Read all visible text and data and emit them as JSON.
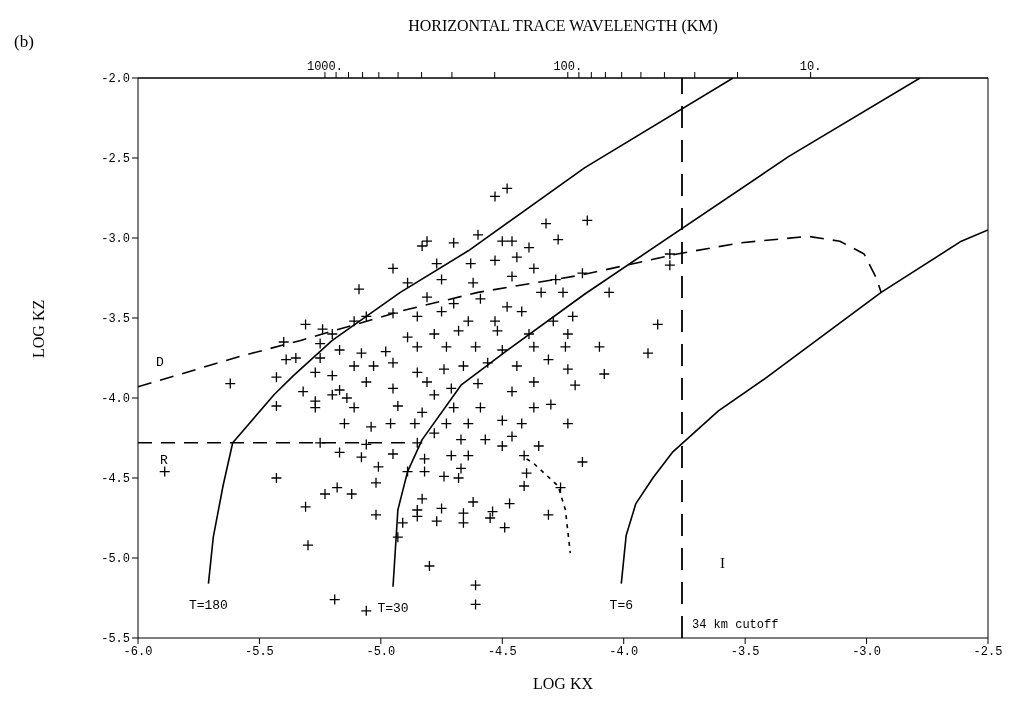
{
  "chart_data": {
    "type": "scatter",
    "title": "(b)",
    "xlabel": "LOG KX",
    "ylabel": "LOG KZ",
    "x2label": "HORIZONTAL TRACE WAVELENGTH (KM)",
    "xlim": [
      -6.0,
      -2.5
    ],
    "ylim": [
      -5.5,
      -2.0
    ],
    "xticks": [
      {
        "value": -6,
        "label": "-6.0"
      },
      -5.5,
      {
        "value": -5,
        "label": "-5.0"
      },
      -4.5,
      {
        "value": -4,
        "label": "-4.0"
      },
      -3.5,
      {
        "value": -3,
        "label": "-3.0"
      },
      -2.5
    ],
    "yticks": [
      -5.5,
      {
        "value": -5,
        "label": "-5.0"
      },
      -4.5,
      {
        "value": -4,
        "label": "-4.0"
      },
      -3.5,
      {
        "value": -3,
        "label": "-3.0"
      },
      -2.5,
      {
        "value": -2,
        "label": "-2.0"
      }
    ],
    "x2lim": [
      5888,
      1.86
    ],
    "log": "x2",
    "x2ticks": [
      {
        "value": 1000,
        "label": "1000."
      },
      {
        "value": 900,
        "label": null
      },
      {
        "value": 800,
        "label": null
      },
      {
        "value": 700,
        "label": null
      },
      {
        "value": 600,
        "label": null
      },
      {
        "value": 500,
        "label": null
      },
      {
        "value": 400,
        "label": null
      },
      {
        "value": 300,
        "label": null
      },
      {
        "value": 200,
        "label": null
      },
      {
        "value": 100,
        "label": "100."
      },
      {
        "value": 90,
        "label": null
      },
      {
        "value": 80,
        "label": null
      },
      {
        "value": 70,
        "label": null
      },
      {
        "value": 60,
        "label": null
      },
      {
        "value": 50,
        "label": null
      },
      {
        "value": 40,
        "label": null
      },
      {
        "value": 30,
        "label": null
      },
      {
        "value": 20,
        "label": null
      },
      {
        "value": 10,
        "label": "10."
      }
    ],
    "grid": false,
    "legend": false,
    "ref_lines": [
      {
        "axis": "x",
        "value": -3.76,
        "label": "34 km cutoff",
        "line_style": "dashed",
        "color": "#000000"
      }
    ],
    "annotations": [
      "I"
    ],
    "series": [
      {
        "color": "#000000",
        "marker": "cross",
        "x": [
          -4.53,
          -4.48,
          -4.32,
          -4.27,
          -4.6,
          -4.5,
          -4.46,
          -4.39,
          -4.7,
          -4.83,
          -4.81,
          -4.95,
          -5.09,
          -5.31,
          -5.24,
          -5.4,
          -5.62,
          -4.21,
          -4.77,
          -4.63,
          -4.53,
          -4.44,
          -4.89,
          -4.75,
          -4.62,
          -4.46,
          -4.37,
          -4.28,
          -4.17,
          -4.81,
          -4.7,
          -4.59,
          -4.48,
          -4.34,
          -4.25,
          -5.06,
          -4.95,
          -4.85,
          -4.75,
          -4.64,
          -4.53,
          -4.42,
          -4.29,
          -5.2,
          -5.11,
          -4.89,
          -4.78,
          -4.68,
          -4.52,
          -4.39,
          -4.23,
          -5.25,
          -5.39,
          -5.35,
          -5.25,
          -5.17,
          -5.08,
          -4.98,
          -4.85,
          -4.73,
          -4.61,
          -4.5,
          -4.37,
          -4.24,
          -5.43,
          -5.27,
          -5.2,
          -5.11,
          -5.03,
          -4.95,
          -4.85,
          -4.74,
          -4.66,
          -4.56,
          -4.44,
          -4.31,
          -4.23,
          -5.32,
          -5.17,
          -5.06,
          -4.95,
          -4.81,
          -4.71,
          -4.6,
          -4.46,
          -4.37,
          -4.2,
          -5.43,
          -5.27,
          -5.27,
          -5.2,
          -5.14,
          -5.15,
          -5.11,
          -5.04,
          -4.96,
          -4.93,
          -4.86,
          -4.83,
          -4.78,
          -4.73,
          -4.7,
          -4.64,
          -4.59,
          -4.5,
          -4.42,
          -4.37,
          -4.3,
          -4.23,
          -4.17,
          -5.25,
          -5.17,
          -5.06,
          -5.08,
          -5.01,
          -4.95,
          -4.85,
          -4.82,
          -4.78,
          -4.71,
          -4.67,
          -4.64,
          -4.67,
          -4.57,
          -4.5,
          -4.46,
          -4.41,
          -4.35,
          -4.82,
          -4.74,
          -4.68,
          -4.89,
          -5.89,
          -5.43,
          -5.23,
          -5.18,
          -5.12,
          -5.02,
          -5.31,
          -5.02,
          -5.3,
          -5.19,
          -5.06,
          -4.93,
          -4.91,
          -4.85,
          -4.85,
          -4.83,
          -4.77,
          -4.75,
          -4.66,
          -4.66,
          -4.62,
          -4.55,
          -4.54,
          -4.49,
          -4.47,
          -4.4,
          -4.41,
          -4.31,
          -4.26,
          -4.8,
          -4.61,
          -4.61,
          -4.15,
          -3.81,
          -3.81,
          -4.06,
          -3.86,
          -4.1,
          -3.9,
          -4.08
        ],
        "values": [
          -2.74,
          -2.69,
          -2.91,
          -3.01,
          -2.98,
          -3.02,
          -3.02,
          -3.06,
          -3.03,
          -3.05,
          -3.02,
          -3.19,
          -3.32,
          -3.54,
          -3.57,
          -3.65,
          -3.91,
          -3.49,
          -3.16,
          -3.16,
          -3.14,
          -3.12,
          -3.28,
          -3.26,
          -3.28,
          -3.24,
          -3.19,
          -3.26,
          -3.22,
          -3.37,
          -3.41,
          -3.38,
          -3.43,
          -3.34,
          -3.34,
          -3.49,
          -3.47,
          -3.49,
          -3.46,
          -3.52,
          -3.52,
          -3.46,
          -3.52,
          -3.6,
          -3.52,
          -3.62,
          -3.6,
          -3.58,
          -3.58,
          -3.6,
          -3.6,
          -3.66,
          -3.76,
          -3.75,
          -3.75,
          -3.7,
          -3.72,
          -3.71,
          -3.68,
          -3.68,
          -3.68,
          -3.7,
          -3.68,
          -3.68,
          -3.87,
          -3.84,
          -3.86,
          -3.8,
          -3.8,
          -3.78,
          -3.84,
          -3.82,
          -3.8,
          -3.78,
          -3.8,
          -3.76,
          -3.82,
          -3.96,
          -3.95,
          -3.9,
          -3.94,
          -3.9,
          -3.94,
          -3.91,
          -3.96,
          -3.9,
          -3.92,
          -4.05,
          -4.02,
          -4.06,
          -3.98,
          -4.0,
          -4.16,
          -4.06,
          -4.18,
          -4.16,
          -4.05,
          -4.16,
          -4.09,
          -3.98,
          -4.16,
          -4.06,
          -4.16,
          -4.06,
          -4.14,
          -4.16,
          -4.06,
          -4.04,
          -4.16,
          -4.4,
          -4.28,
          -4.34,
          -4.29,
          -4.37,
          -4.43,
          -4.35,
          -4.28,
          -4.38,
          -4.22,
          -4.36,
          -4.26,
          -4.36,
          -4.44,
          -4.26,
          -4.3,
          -4.24,
          -4.36,
          -4.3,
          -4.46,
          -4.49,
          -4.5,
          -4.46,
          -4.46,
          -4.5,
          -4.6,
          -4.56,
          -4.6,
          -4.53,
          -4.68,
          -4.73,
          -4.92,
          -5.26,
          -5.33,
          -4.87,
          -4.78,
          -4.7,
          -4.74,
          -4.63,
          -4.77,
          -4.69,
          -4.72,
          -4.78,
          -4.65,
          -4.75,
          -4.71,
          -4.81,
          -4.66,
          -4.47,
          -4.55,
          -4.73,
          -4.56,
          -5.05,
          -5.17,
          -5.29,
          -2.89,
          -3.1,
          -3.17,
          -3.34,
          -3.54,
          -3.68,
          -3.72,
          -3.85
        ]
      },
      {
        "type": "line",
        "name": "T=180",
        "color": "#000000",
        "line_style": "solid",
        "x": [
          -5.71,
          -5.69,
          -5.65,
          -5.61,
          -5.44,
          -5.36,
          -5.2,
          -4.92,
          -4.64,
          -4.16,
          -3.55
        ],
        "values": [
          -5.16,
          -4.87,
          -4.55,
          -4.28,
          -3.98,
          -3.86,
          -3.64,
          -3.34,
          -3.08,
          -2.56,
          -2.0
        ]
      },
      {
        "type": "line",
        "name": "T=30",
        "color": "#000000",
        "line_style": "solid",
        "x": [
          -4.95,
          -4.93,
          -4.89,
          -4.83,
          -4.67,
          -4.46,
          -4.16,
          -3.32,
          -2.78
        ],
        "values": [
          -5.18,
          -4.7,
          -4.46,
          -4.26,
          -3.92,
          -3.68,
          -3.35,
          -2.49,
          -2.0
        ]
      },
      {
        "type": "line",
        "name": "T=6",
        "color": "#000000",
        "line_style": "solid",
        "x": [
          -4.01,
          -3.99,
          -3.95,
          -3.88,
          -3.8,
          -3.61,
          -3.41,
          -2.94,
          -2.61,
          -2.5
        ],
        "values": [
          -5.16,
          -4.86,
          -4.66,
          -4.5,
          -4.34,
          -4.08,
          -3.87,
          -3.34,
          -3.02,
          -2.95
        ]
      },
      {
        "type": "line",
        "name": "D",
        "color": "#000000",
        "line_style": "dashed",
        "x": [
          -6.0,
          -5.58,
          -5.33,
          -4.9,
          -4.6,
          -4.17,
          -3.78,
          -3.52,
          -3.24,
          -3.11,
          -3.01,
          -2.96,
          -2.94
        ],
        "values": [
          -3.93,
          -3.74,
          -3.64,
          -3.45,
          -3.34,
          -3.23,
          -3.1,
          -3.03,
          -2.99,
          -3.02,
          -3.1,
          -3.25,
          -3.34
        ]
      },
      {
        "type": "line",
        "name": "R",
        "color": "#000000",
        "line_style": "dashed",
        "x": [
          -6.0,
          -4.87
        ],
        "values": [
          -4.28,
          -4.28
        ]
      },
      {
        "type": "line",
        "color": "#000000",
        "line_style": "dotted",
        "x": [
          -4.4,
          -4.37,
          -4.27,
          -4.24,
          -4.22
        ],
        "values": [
          -4.38,
          -4.41,
          -4.55,
          -4.7,
          -4.97
        ]
      }
    ]
  }
}
